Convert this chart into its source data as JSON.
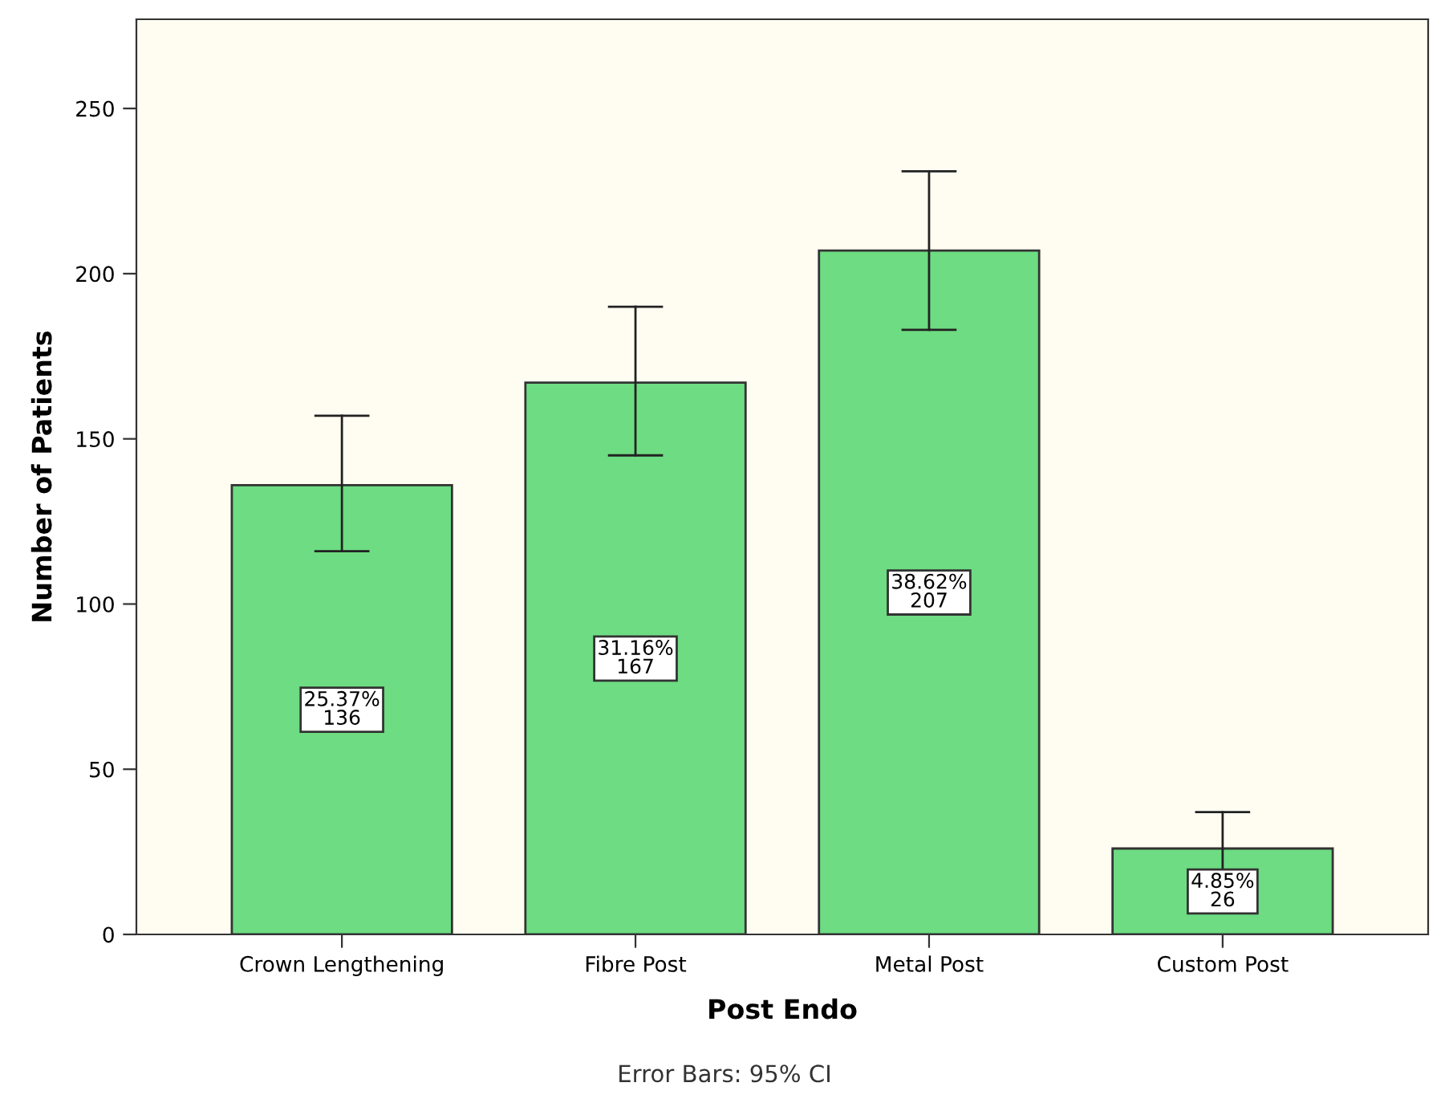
{
  "chart_data": {
    "type": "bar",
    "xlabel": "Post Endo",
    "ylabel": "Number of Patients",
    "categories": [
      "Crown Lengthening",
      "Fibre Post",
      "Metal Post",
      "Custom Post"
    ],
    "values": [
      136,
      167,
      207,
      26
    ],
    "errors": [
      [
        116,
        157
      ],
      [
        145,
        190
      ],
      [
        183,
        231
      ],
      [
        16,
        37
      ]
    ],
    "value_labels": [
      "25.37%\n136",
      "31.16%\n167",
      "38.62%\n207",
      "4.85%\n26"
    ],
    "color": "#6ddc82",
    "ylim": [
      0,
      277
    ],
    "yticks": [
      0,
      50,
      100,
      150,
      200,
      250
    ],
    "annotations": [
      "Error Bars: 95% CI"
    ]
  }
}
